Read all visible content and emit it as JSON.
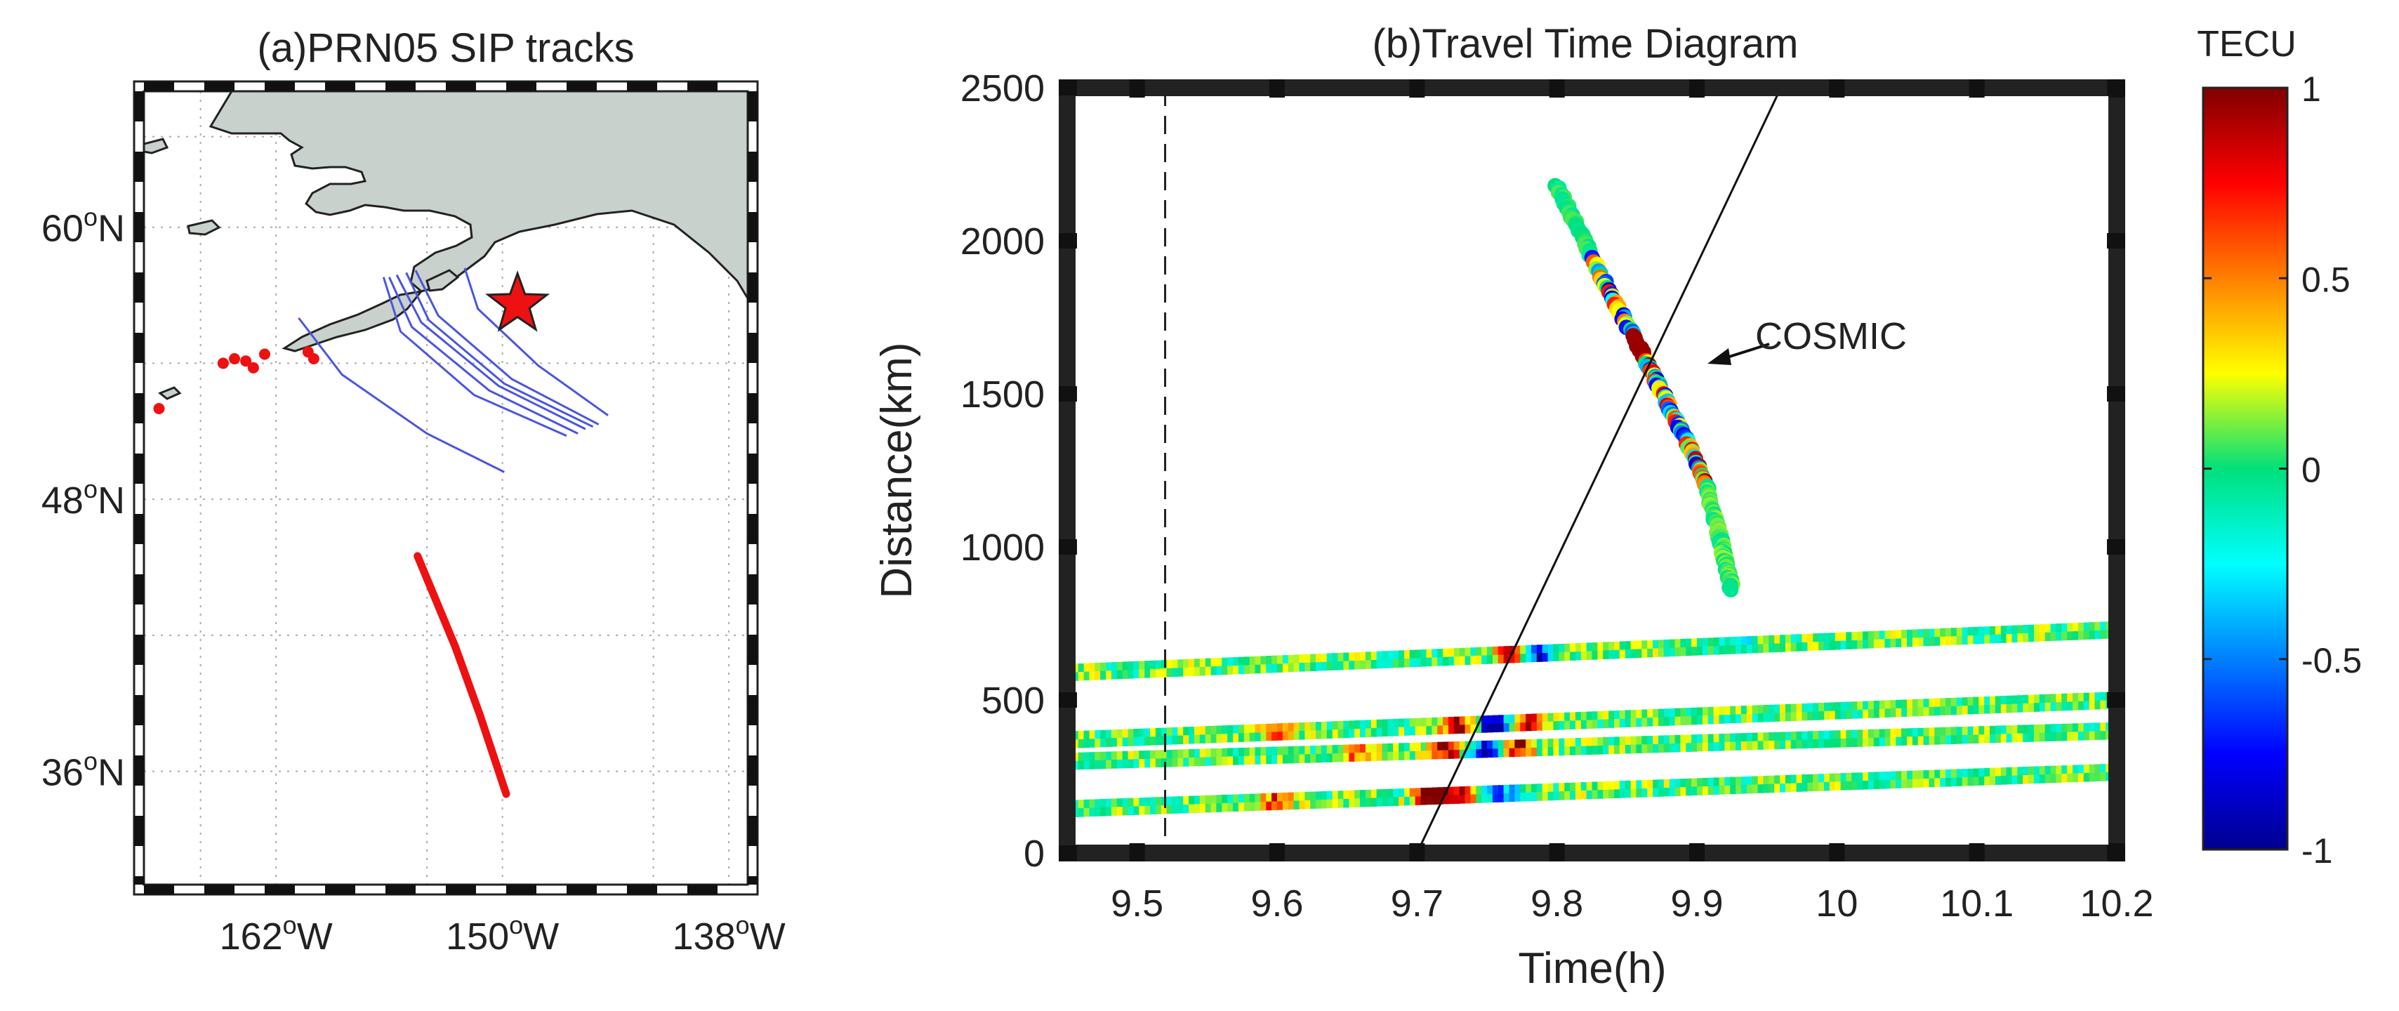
{
  "map_panel": {
    "title": "(a)PRN05 SIP tracks",
    "lat_ticks": [
      {
        "deg": "60",
        "sup": "o",
        "hem": "N",
        "lat": 60
      },
      {
        "deg": "48",
        "sup": "o",
        "hem": "N",
        "lat": 48
      },
      {
        "deg": "36",
        "sup": "o",
        "hem": "N",
        "lat": 36
      }
    ],
    "lon_ticks": [
      {
        "deg": "162",
        "sup": "o",
        "hem": "W",
        "lon": -162
      },
      {
        "deg": "150",
        "sup": "o",
        "hem": "W",
        "lon": -150
      },
      {
        "deg": "138",
        "sup": "o",
        "hem": "W",
        "lon": -138
      }
    ],
    "lon_range": [
      -169,
      -137
    ],
    "lat_range": [
      31,
      66
    ],
    "colors": {
      "land": "#c8d1cc",
      "blue_track": "#4a55e0",
      "red_track": "#ee1111",
      "star": "#ee1111"
    },
    "epicenter_star": {
      "lon": -149.2,
      "lat": 56.6
    },
    "red_track": [
      [
        -154.5,
        45.5
      ],
      [
        -152.5,
        41.5
      ],
      [
        -151.2,
        38.5
      ],
      [
        -149.8,
        35.0
      ]
    ],
    "red_dots": [
      [
        -168.2,
        52.0
      ],
      [
        -164.8,
        54.0
      ],
      [
        -164.2,
        54.2
      ],
      [
        -163.6,
        54.1
      ],
      [
        -163.2,
        53.8
      ],
      [
        -162.6,
        54.4
      ],
      [
        -160.3,
        54.5
      ],
      [
        -160.0,
        54.2
      ]
    ],
    "blue_tracks": [
      [
        [
          -160.8,
          56.0
        ],
        [
          -158.5,
          53.5
        ],
        [
          -154.0,
          50.9
        ],
        [
          -149.9,
          49.2
        ]
      ],
      [
        [
          -156.3,
          57.8
        ],
        [
          -155.4,
          55.4
        ],
        [
          -151.5,
          52.6
        ],
        [
          -146.6,
          50.8
        ]
      ],
      [
        [
          -156.0,
          57.8
        ],
        [
          -154.8,
          55.6
        ],
        [
          -150.7,
          52.8
        ],
        [
          -146.0,
          50.9
        ]
      ],
      [
        [
          -155.6,
          57.9
        ],
        [
          -154.3,
          55.8
        ],
        [
          -150.2,
          53.0
        ],
        [
          -145.6,
          51.1
        ]
      ],
      [
        [
          -155.1,
          58.0
        ],
        [
          -153.9,
          55.9
        ],
        [
          -149.9,
          53.1
        ],
        [
          -145.2,
          51.2
        ]
      ],
      [
        [
          -154.6,
          58.1
        ],
        [
          -153.4,
          56.1
        ],
        [
          -149.5,
          53.3
        ],
        [
          -144.9,
          51.3
        ]
      ],
      [
        [
          -152.0,
          58.2
        ],
        [
          -151.3,
          56.4
        ],
        [
          -148.1,
          53.9
        ],
        [
          -144.4,
          51.7
        ]
      ]
    ]
  },
  "ttd_panel": {
    "title": "(b)Travel Time Diagram",
    "annotation": "COSMIC"
  },
  "colorbar": {
    "label": "TECU",
    "ticks": [
      {
        "label": "1",
        "value": 1
      },
      {
        "label": "0.5",
        "value": 0.5
      },
      {
        "label": "0",
        "value": 0
      },
      {
        "label": "-0.5",
        "value": -0.5
      },
      {
        "label": "-1",
        "value": -1
      }
    ],
    "range": [
      -1,
      1
    ]
  },
  "chart_data": {
    "type": "scatter",
    "title": "(b)Travel Time Diagram",
    "xlabel": "Time(h)",
    "ylabel": "Distance(km)",
    "xlim": [
      9.45,
      10.2
    ],
    "ylim": [
      0,
      2500
    ],
    "xticks": [
      {
        "label": "9.5",
        "value": 9.5
      },
      {
        "label": "9.6",
        "value": 9.6
      },
      {
        "label": "9.7",
        "value": 9.7
      },
      {
        "label": "9.8",
        "value": 9.8
      },
      {
        "label": "9.9",
        "value": 9.9
      },
      {
        "label": "10",
        "value": 10.0
      },
      {
        "label": "10.1",
        "value": 10.1
      },
      {
        "label": "10.2",
        "value": 10.2
      }
    ],
    "yticks": [
      {
        "label": "2500",
        "value": 2500
      },
      {
        "label": "2000",
        "value": 2000
      },
      {
        "label": "1500",
        "value": 1500
      },
      {
        "label": "1000",
        "value": 1000
      },
      {
        "label": "500",
        "value": 500
      },
      {
        "label": "0",
        "value": 0
      }
    ],
    "grid": false,
    "colorscale": "jet",
    "crange": [
      -1,
      1
    ],
    "dashed_vline_x": 9.52,
    "slope_line": [
      [
        9.7,
        0
      ],
      [
        9.96,
        2500
      ]
    ],
    "cosmic_track": [
      [
        9.8,
        2180
      ],
      [
        9.83,
        1900
      ],
      [
        9.86,
        1640
      ],
      [
        9.88,
        1460
      ],
      [
        9.905,
        1230
      ],
      [
        9.918,
        1000
      ],
      [
        9.925,
        860
      ]
    ],
    "bands": [
      {
        "start": [
          9.45,
          590
        ],
        "end": [
          10.2,
          730
        ],
        "height": 55,
        "anomalies": [
          {
            "x": 9.77,
            "value": 0.9
          },
          {
            "x": 9.785,
            "value": -0.9
          },
          {
            "x": 9.93,
            "value": -0.3
          }
        ]
      },
      {
        "start": [
          9.45,
          370
        ],
        "end": [
          10.2,
          500
        ],
        "height": 55,
        "anomalies": [
          {
            "x": 9.6,
            "value": 0.6
          },
          {
            "x": 9.73,
            "value": 0.8
          },
          {
            "x": 9.755,
            "value": -1.0
          },
          {
            "x": 9.78,
            "value": 0.7
          }
        ]
      },
      {
        "start": [
          9.45,
          300
        ],
        "end": [
          10.2,
          400
        ],
        "height": 55,
        "anomalies": [
          {
            "x": 9.72,
            "value": 0.9
          },
          {
            "x": 9.75,
            "value": -1.0
          },
          {
            "x": 9.77,
            "value": 0.8
          },
          {
            "x": 9.66,
            "value": 0.5
          }
        ]
      },
      {
        "start": [
          9.45,
          145
        ],
        "end": [
          10.2,
          265
        ],
        "height": 55,
        "anomalies": [
          {
            "x": 9.6,
            "value": 0.6
          },
          {
            "x": 9.71,
            "value": 0.9
          },
          {
            "x": 9.73,
            "value": 0.8
          },
          {
            "x": 9.76,
            "value": -0.6
          }
        ]
      }
    ]
  }
}
